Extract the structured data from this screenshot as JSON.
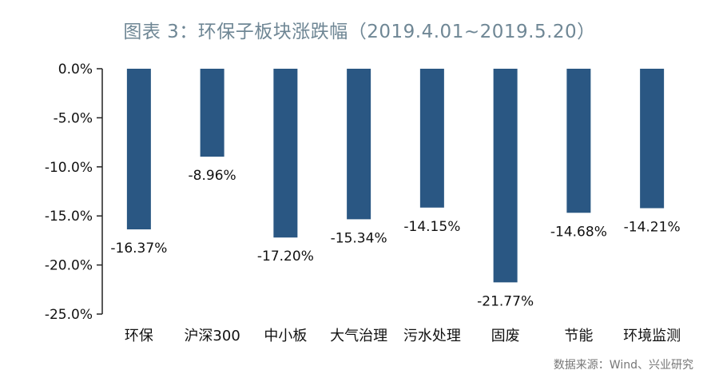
{
  "title": "图表 3：环保子板块涨跌幅（2019.4.01~2019.5.20）",
  "source": "数据来源：Wind、兴业研究",
  "chart_data": {
    "type": "bar",
    "title": "图表 3：环保子板块涨跌幅（2019.4.01~2019.5.20）",
    "categories": [
      "环保",
      "沪深300",
      "中小板",
      "大气治理",
      "污水处理",
      "固废",
      "节能",
      "环境监测"
    ],
    "values": [
      -16.37,
      -8.96,
      -17.2,
      -15.34,
      -14.15,
      -21.77,
      -14.68,
      -14.21
    ],
    "data_labels": [
      "-16.37%",
      "-8.96%",
      "-17.20%",
      "-15.34%",
      "-14.15%",
      "-21.77%",
      "-14.68%",
      "-14.21%"
    ],
    "ylim": [
      -25,
      0
    ],
    "yticks": [
      0,
      -5,
      -10,
      -15,
      -20,
      -25
    ],
    "ytick_labels": [
      "0.0%",
      "-5.0%",
      "-10.0%",
      "-15.0%",
      "-20.0%",
      "-25.0%"
    ],
    "xlabel": "",
    "ylabel": "",
    "grid": false,
    "bar_color": "#2a5783",
    "axis_color": "#222222"
  }
}
